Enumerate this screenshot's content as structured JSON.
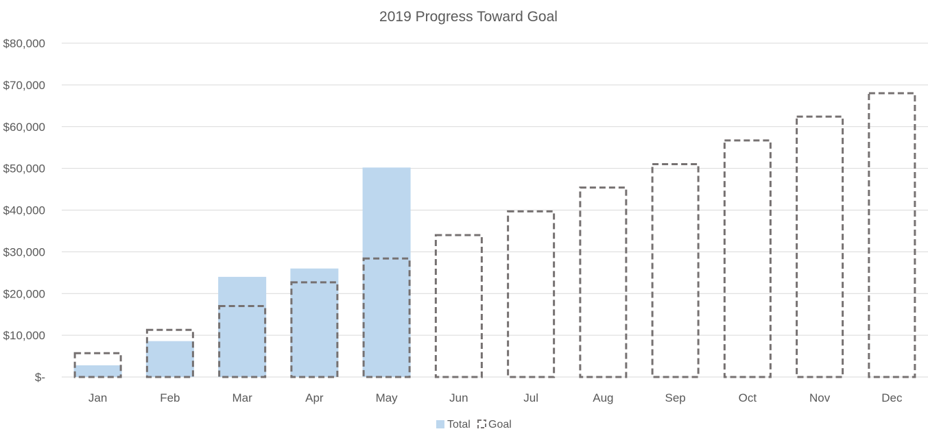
{
  "chart_data": {
    "type": "bar",
    "title": "2019 Progress Toward Goal",
    "xlabel": "",
    "ylabel": "",
    "categories": [
      "Jan",
      "Feb",
      "Mar",
      "Apr",
      "May",
      "Jun",
      "Jul",
      "Aug",
      "Sep",
      "Oct",
      "Nov",
      "Dec"
    ],
    "series": [
      {
        "name": "Total",
        "style": "filled",
        "color": "#bdd7ee",
        "values": [
          2800,
          8600,
          24000,
          26000,
          50200,
          0,
          0,
          0,
          0,
          0,
          0,
          0
        ]
      },
      {
        "name": "Goal",
        "style": "dashed-outline",
        "color": "#767171",
        "values": [
          5700,
          11300,
          17000,
          22700,
          28400,
          34000,
          39700,
          45400,
          51000,
          56700,
          62400,
          68000
        ]
      }
    ],
    "ylim": [
      0,
      80000
    ],
    "yticks": [
      0,
      10000,
      20000,
      30000,
      40000,
      50000,
      60000,
      70000,
      80000
    ],
    "ytick_labels": [
      "$-",
      "$10,000",
      "$20,000",
      "$30,000",
      "$40,000",
      "$50,000",
      "$60,000",
      "$70,000",
      "$80,000"
    ],
    "grid": true,
    "legend": "bottom-center"
  }
}
